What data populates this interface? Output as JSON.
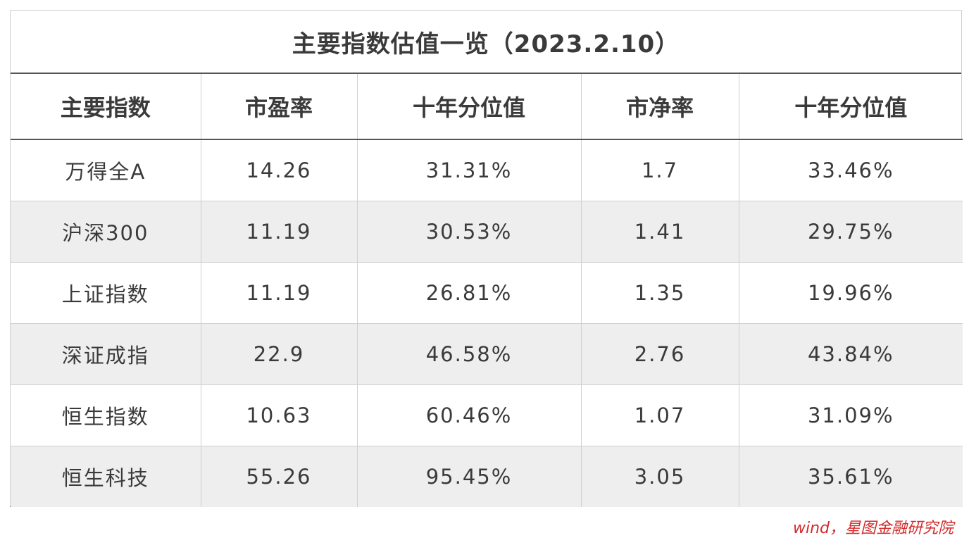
{
  "title": "主要指数估值一览（2023.2.10）",
  "columns": [
    "主要指数",
    "市盈率",
    "十年分位值",
    "市净率",
    "十年分位值"
  ],
  "rows": [
    [
      "万得全A",
      "14.26",
      "31.31%",
      "1.7",
      "33.46%"
    ],
    [
      "沪深300",
      "11.19",
      "30.53%",
      "1.41",
      "29.75%"
    ],
    [
      "上证指数",
      "11.19",
      "26.81%",
      "1.35",
      "19.96%"
    ],
    [
      "深证成指",
      "22.9",
      "46.58%",
      "2.76",
      "43.84%"
    ],
    [
      "恒生指数",
      "10.63",
      "60.46%",
      "1.07",
      "31.09%"
    ],
    [
      "恒生科技",
      "55.26",
      "95.45%",
      "3.05",
      "35.61%"
    ]
  ],
  "source": "wind，星图金融研究院",
  "colors": {
    "rule": "#555555",
    "stripe": "#eeeeee",
    "source_text": "#d42a2a"
  }
}
